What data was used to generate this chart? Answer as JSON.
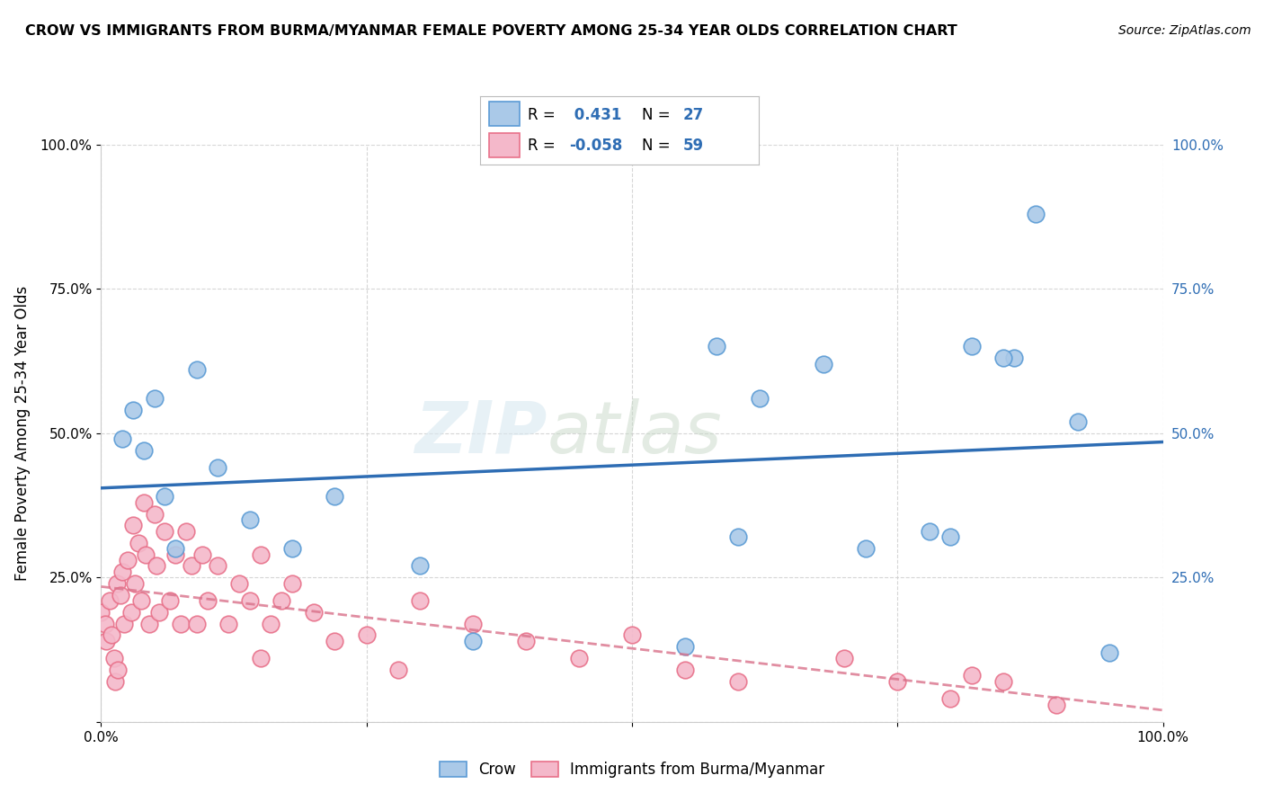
{
  "title": "CROW VS IMMIGRANTS FROM BURMA/MYANMAR FEMALE POVERTY AMONG 25-34 YEAR OLDS CORRELATION CHART",
  "source": "Source: ZipAtlas.com",
  "ylabel": "Female Poverty Among 25-34 Year Olds",
  "xlim": [
    0,
    1.0
  ],
  "ylim": [
    0,
    1.0
  ],
  "xticks": [
    0.0,
    0.25,
    0.5,
    0.75,
    1.0
  ],
  "xticklabels": [
    "0.0%",
    "",
    "",
    "",
    "100.0%"
  ],
  "yticks": [
    0.0,
    0.25,
    0.5,
    0.75,
    1.0
  ],
  "yticklabels": [
    "",
    "25.0%",
    "50.0%",
    "75.0%",
    "100.0%"
  ],
  "right_yticklabels": [
    "",
    "25.0%",
    "50.0%",
    "75.0%",
    "100.0%"
  ],
  "crow_color": "#aac9e8",
  "crow_edge_color": "#5b9bd5",
  "burma_color": "#f4b8ca",
  "burma_edge_color": "#e8718a",
  "crow_r": 0.431,
  "crow_n": 27,
  "burma_r": -0.058,
  "burma_n": 59,
  "legend_label_crow": "Crow",
  "legend_label_burma": "Immigrants from Burma/Myanmar",
  "crow_line_color": "#2e6db4",
  "burma_line_color": "#d9718a",
  "crow_points_x": [
    0.02,
    0.03,
    0.04,
    0.05,
    0.06,
    0.07,
    0.09,
    0.11,
    0.14,
    0.18,
    0.22,
    0.3,
    0.35,
    0.58,
    0.62,
    0.68,
    0.72,
    0.78,
    0.82,
    0.86,
    0.88,
    0.92,
    0.95,
    0.85,
    0.8,
    0.6,
    0.55
  ],
  "crow_points_y": [
    0.49,
    0.54,
    0.47,
    0.56,
    0.39,
    0.3,
    0.61,
    0.44,
    0.35,
    0.3,
    0.39,
    0.27,
    0.14,
    0.65,
    0.56,
    0.62,
    0.3,
    0.33,
    0.65,
    0.63,
    0.88,
    0.52,
    0.12,
    0.63,
    0.32,
    0.32,
    0.13
  ],
  "burma_points_x": [
    0.0,
    0.004,
    0.005,
    0.008,
    0.01,
    0.012,
    0.013,
    0.015,
    0.016,
    0.018,
    0.02,
    0.022,
    0.025,
    0.028,
    0.03,
    0.032,
    0.035,
    0.038,
    0.04,
    0.042,
    0.045,
    0.05,
    0.052,
    0.055,
    0.06,
    0.065,
    0.07,
    0.075,
    0.08,
    0.085,
    0.09,
    0.095,
    0.1,
    0.11,
    0.12,
    0.13,
    0.14,
    0.15,
    0.16,
    0.17,
    0.18,
    0.2,
    0.22,
    0.25,
    0.28,
    0.3,
    0.35,
    0.4,
    0.45,
    0.5,
    0.55,
    0.6,
    0.7,
    0.75,
    0.8,
    0.82,
    0.85,
    0.9,
    0.15
  ],
  "burma_points_y": [
    0.19,
    0.17,
    0.14,
    0.21,
    0.15,
    0.11,
    0.07,
    0.24,
    0.09,
    0.22,
    0.26,
    0.17,
    0.28,
    0.19,
    0.34,
    0.24,
    0.31,
    0.21,
    0.38,
    0.29,
    0.17,
    0.36,
    0.27,
    0.19,
    0.33,
    0.21,
    0.29,
    0.17,
    0.33,
    0.27,
    0.17,
    0.29,
    0.21,
    0.27,
    0.17,
    0.24,
    0.21,
    0.29,
    0.17,
    0.21,
    0.24,
    0.19,
    0.14,
    0.15,
    0.09,
    0.21,
    0.17,
    0.14,
    0.11,
    0.15,
    0.09,
    0.07,
    0.11,
    0.07,
    0.04,
    0.08,
    0.07,
    0.03,
    0.11
  ],
  "watermark_zip": "ZIP",
  "watermark_atlas": "atlas",
  "background_color": "#ffffff",
  "grid_color": "#cccccc",
  "marker_size": 180
}
